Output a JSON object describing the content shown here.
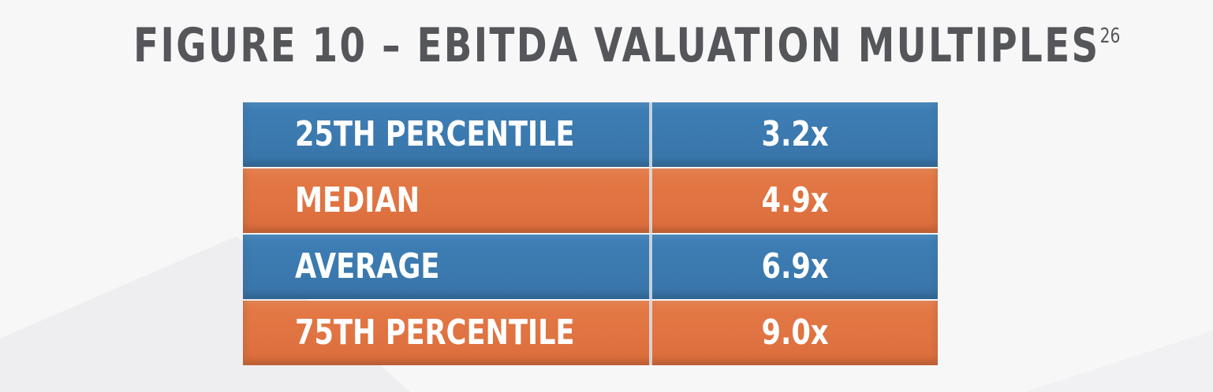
{
  "title": "FIGURE 10 – EBITDA VALUATION MULTIPLES",
  "title_superscript": "26",
  "colors": {
    "blue_row": "#3e7fb6",
    "orange_row": "#e47a47",
    "title_text": "#55565a"
  },
  "chart_data": {
    "type": "table",
    "rows": [
      {
        "label": "25TH PERCENTILE",
        "value": "3.2x",
        "color": "blue"
      },
      {
        "label": "MEDIAN",
        "value": "4.9x",
        "color": "orange"
      },
      {
        "label": "AVERAGE",
        "value": "6.9x",
        "color": "blue"
      },
      {
        "label": "75TH PERCENTILE",
        "value": "9.0x",
        "color": "orange"
      }
    ]
  }
}
